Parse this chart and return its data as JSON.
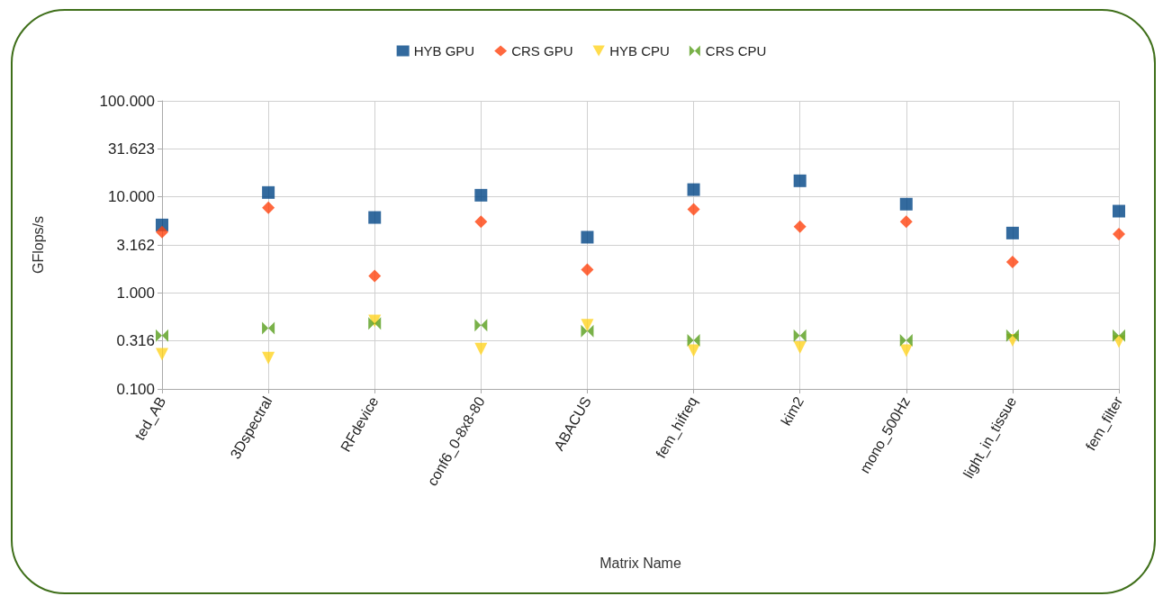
{
  "chart_data": {
    "type": "scatter",
    "xlabel": "Matrix Name",
    "ylabel": "GFlops/s",
    "categories": [
      "ted_AB",
      "3Dspectral",
      "RFdevice",
      "conf6_0-8x8-80",
      "ABACUS",
      "fem_hifreq",
      "kim2",
      "mono_500Hz",
      "light_in_tissue",
      "fem_filter"
    ],
    "series": [
      {
        "name": "HYB GPU",
        "color": "#004586",
        "marker": "square",
        "values": [
          5.1,
          11.1,
          6.1,
          10.4,
          3.8,
          11.9,
          14.7,
          8.4,
          4.2,
          7.1
        ]
      },
      {
        "name": "CRS GPU",
        "color": "#ff420e",
        "marker": "diamond",
        "values": [
          4.3,
          7.7,
          1.5,
          5.5,
          1.75,
          7.4,
          4.9,
          5.5,
          2.1,
          4.1
        ]
      },
      {
        "name": "HYB CPU",
        "color": "#ffd320",
        "marker": "triangle",
        "values": [
          0.23,
          0.21,
          0.51,
          0.26,
          0.46,
          0.25,
          0.27,
          0.25,
          0.32,
          0.31
        ]
      },
      {
        "name": "CRS CPU",
        "color": "#579d1c",
        "marker": "cross",
        "values": [
          0.36,
          0.43,
          0.48,
          0.46,
          0.4,
          0.32,
          0.36,
          0.32,
          0.36,
          0.36
        ]
      }
    ],
    "log": "y",
    "ylim": [
      0.1,
      100
    ],
    "yticks": [
      {
        "value": 0.1,
        "label": "0.100"
      },
      {
        "value": 0.316,
        "label": "0.316"
      },
      {
        "value": 1,
        "label": "1.000"
      },
      {
        "value": 3.162,
        "label": "3.162"
      },
      {
        "value": 10,
        "label": "10.000"
      },
      {
        "value": 31.623,
        "label": "31.623"
      },
      {
        "value": 100,
        "label": "100.000"
      }
    ],
    "grid": true,
    "legend": "top"
  }
}
